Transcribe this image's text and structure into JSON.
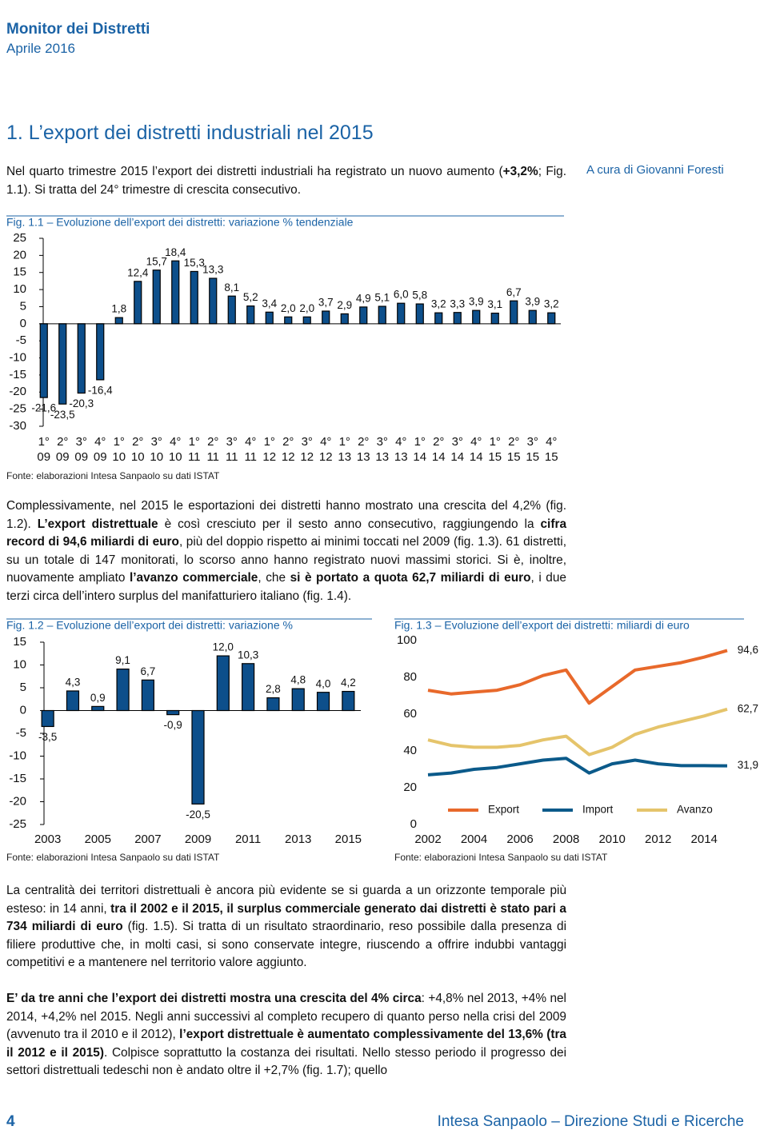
{
  "header": {
    "publication": "Monitor dei Distretti",
    "date": "Aprile 2016"
  },
  "section_title": "1. L’export dei distretti industriali nel 2015",
  "author": "A cura di Giovanni Foresti",
  "paragraphs": [
    [
      {
        "text": "Nel quarto trimestre 2015 l’export dei distretti industriali ha registrato un nuovo aumento ("
      },
      {
        "text": "+3,2%",
        "bold": true
      },
      {
        "text": "; Fig. 1.1). Si tratta del 24° trimestre di crescita consecutivo."
      }
    ],
    [
      {
        "text": "Complessivamente, nel 2015 le esportazioni dei distretti hanno mostrato una crescita del 4,2% (fig. 1.2). "
      },
      {
        "text": "L’export distrettuale",
        "bold": true
      },
      {
        "text": " è così cresciuto per il sesto anno consecutivo, raggiungendo la "
      },
      {
        "text": "cifra record di 94,6 miliardi di euro",
        "bold": true
      },
      {
        "text": ", più del doppio rispetto ai minimi toccati nel 2009 (fig. 1.3). 61 distretti, su un totale di 147 monitorati, lo scorso anno hanno registrato nuovi massimi storici. Si è, inoltre, nuovamente ampliato "
      },
      {
        "text": "l’avanzo commerciale",
        "bold": true
      },
      {
        "text": ", che "
      },
      {
        "text": "si è portato a quota 62,7 miliardi di euro",
        "bold": true
      },
      {
        "text": ", i due terzi circa dell’intero surplus del manifatturiero italiano (fig. 1.4)."
      }
    ],
    [
      {
        "text": "La centralità dei territori distrettuali è ancora più evidente se si guarda a un orizzonte temporale più esteso: in 14 anni, "
      },
      {
        "text": "tra il 2002 e il 2015, il surplus commerciale generato dai distretti è stato pari a 734 miliardi di euro",
        "bold": true
      },
      {
        "text": " (fig. 1.5). Si tratta di un risultato straordinario, reso possibile dalla presenza di filiere produttive che, in molti casi, si sono conservate integre, riuscendo a offrire indubbi vantaggi competitivi e a mantenere nel territorio valore aggiunto."
      }
    ],
    [
      {
        "text": "E’ da tre anni che l’export dei distretti mostra una crescita del 4% circa",
        "bold": true
      },
      {
        "text": ": +4,8% nel 2013, +4% nel 2014, +4,2% nel 2015. Negli anni successivi al completo recupero di quanto perso nella crisi del 2009 (avvenuto tra il 2010 e il 2012), "
      },
      {
        "text": "l’export distrettuale è aumentato complessivamente del 13,6% (tra il 2012 e il 2015)",
        "bold": true
      },
      {
        "text": ". Colpisce soprattutto la costanza dei risultati. Nello stesso periodo il progresso dei settori distrettuali tedeschi non è andato oltre il +2,7% (fig. 1.7); quello"
      }
    ]
  ],
  "chart_data": [
    {
      "type": "bar",
      "title": "Fig. 1.1 – Evoluzione dell’export dei distretti: variazione % tendenziale",
      "source": "Fonte: elaborazioni Intesa Sanpaolo su dati ISTAT",
      "categories": [
        [
          "1°",
          "09"
        ],
        [
          "2°",
          "09"
        ],
        [
          "3°",
          "09"
        ],
        [
          "4°",
          "09"
        ],
        [
          "1°",
          "10"
        ],
        [
          "2°",
          "10"
        ],
        [
          "3°",
          "10"
        ],
        [
          "4°",
          "10"
        ],
        [
          "1°",
          "11"
        ],
        [
          "2°",
          "11"
        ],
        [
          "3°",
          "11"
        ],
        [
          "4°",
          "11"
        ],
        [
          "1°",
          "12"
        ],
        [
          "2°",
          "12"
        ],
        [
          "3°",
          "12"
        ],
        [
          "4°",
          "12"
        ],
        [
          "1°",
          "13"
        ],
        [
          "2°",
          "13"
        ],
        [
          "3°",
          "13"
        ],
        [
          "4°",
          "13"
        ],
        [
          "1°",
          "14"
        ],
        [
          "2°",
          "14"
        ],
        [
          "3°",
          "14"
        ],
        [
          "4°",
          "14"
        ],
        [
          "1°",
          "15"
        ],
        [
          "2°",
          "15"
        ],
        [
          "3°",
          "15"
        ],
        [
          "4°",
          "15"
        ]
      ],
      "values": [
        -21.6,
        -23.5,
        -20.3,
        -16.4,
        1.8,
        12.4,
        15.7,
        18.4,
        15.3,
        13.3,
        8.1,
        5.2,
        3.4,
        2.0,
        2.0,
        3.7,
        2.9,
        4.9,
        5.1,
        6.0,
        5.8,
        3.2,
        3.3,
        3.9,
        3.1,
        6.7,
        3.9,
        3.2
      ],
      "value_labels": [
        "-21,6",
        "-23,5",
        "-20,3",
        "-16,4",
        "1,8",
        "12,4",
        "15,7",
        "18,4",
        "15,3",
        "13,3",
        "8,1",
        "5,2",
        "3,4",
        "2,0",
        "2,0",
        "3,7",
        "2,9",
        "4,9",
        "5,1",
        "6,0",
        "5,8",
        "3,2",
        "3,3",
        "3,9",
        "3,1",
        "6,7",
        "3,9",
        "3,2"
      ],
      "color": "#0d4f8b",
      "ylim": [
        -30,
        25
      ],
      "yticks": [
        -30,
        -25,
        -20,
        -15,
        -10,
        -5,
        0,
        5,
        10,
        15,
        20,
        25
      ]
    },
    {
      "type": "bar",
      "title": "Fig. 1.2 – Evoluzione dell’export dei distretti: variazione %",
      "source": "Fonte: elaborazioni Intesa Sanpaolo su dati ISTAT",
      "categories": [
        "2003",
        null,
        "2005",
        null,
        "2007",
        null,
        "2009",
        null,
        "2011",
        null,
        "2013",
        null,
        "2015"
      ],
      "values": [
        -3.5,
        4.3,
        0.9,
        9.1,
        6.7,
        -0.9,
        -20.5,
        12.0,
        10.3,
        2.8,
        4.8,
        4.0,
        4.2
      ],
      "value_labels": [
        "-3,5",
        "4,3",
        "0,9",
        "9,1",
        "6,7",
        "-0,9",
        "-20,5",
        "12,0",
        "10,3",
        "2,8",
        "4,8",
        "4,0",
        "4,2"
      ],
      "color": "#0d4f8b",
      "ylim": [
        -25,
        15
      ],
      "yticks": [
        -25,
        -20,
        -15,
        -10,
        -5,
        0,
        5,
        10,
        15
      ]
    },
    {
      "type": "line",
      "title": "Fig. 1.3 – Evoluzione dell’export dei distretti: miliardi di euro",
      "source": "Fonte: elaborazioni Intesa Sanpaolo su dati ISTAT",
      "x": [
        2002,
        2003,
        2004,
        2005,
        2006,
        2007,
        2008,
        2009,
        2010,
        2011,
        2012,
        2013,
        2014,
        2015
      ],
      "series": [
        {
          "name": "Export",
          "color": "#e8692b",
          "values": [
            73,
            71,
            72,
            73,
            76,
            81,
            84,
            66,
            75,
            84,
            86,
            88,
            91,
            94.6
          ],
          "value_labels": [
            null,
            null,
            null,
            null,
            null,
            null,
            null,
            null,
            null,
            null,
            null,
            null,
            null,
            "94,6"
          ]
        },
        {
          "name": "Import",
          "color": "#0b5a8a",
          "values": [
            27,
            28,
            30,
            31,
            33,
            35,
            36,
            28,
            33,
            35,
            33,
            32,
            32,
            31.9
          ],
          "value_labels": [
            null,
            null,
            null,
            null,
            null,
            null,
            null,
            null,
            null,
            null,
            null,
            null,
            null,
            "31,9"
          ]
        },
        {
          "name": "Avanzo",
          "color": "#e5c46b",
          "values": [
            46,
            43,
            42,
            42,
            43,
            46,
            48,
            38,
            42,
            49,
            53,
            56,
            59,
            62.7
          ],
          "value_labels": [
            null,
            null,
            null,
            null,
            null,
            null,
            null,
            null,
            null,
            null,
            null,
            null,
            null,
            "62,7"
          ]
        }
      ],
      "xlim": [
        2002,
        2015
      ],
      "xticks": [
        2002,
        2004,
        2006,
        2008,
        2010,
        2012,
        2014
      ],
      "ylim": [
        0,
        100
      ],
      "yticks": [
        0,
        20,
        40,
        60,
        80,
        100
      ],
      "legend": "lower right"
    }
  ],
  "footer": {
    "page": "4",
    "publisher": "Intesa Sanpaolo – Direzione Studi e Ricerche"
  }
}
